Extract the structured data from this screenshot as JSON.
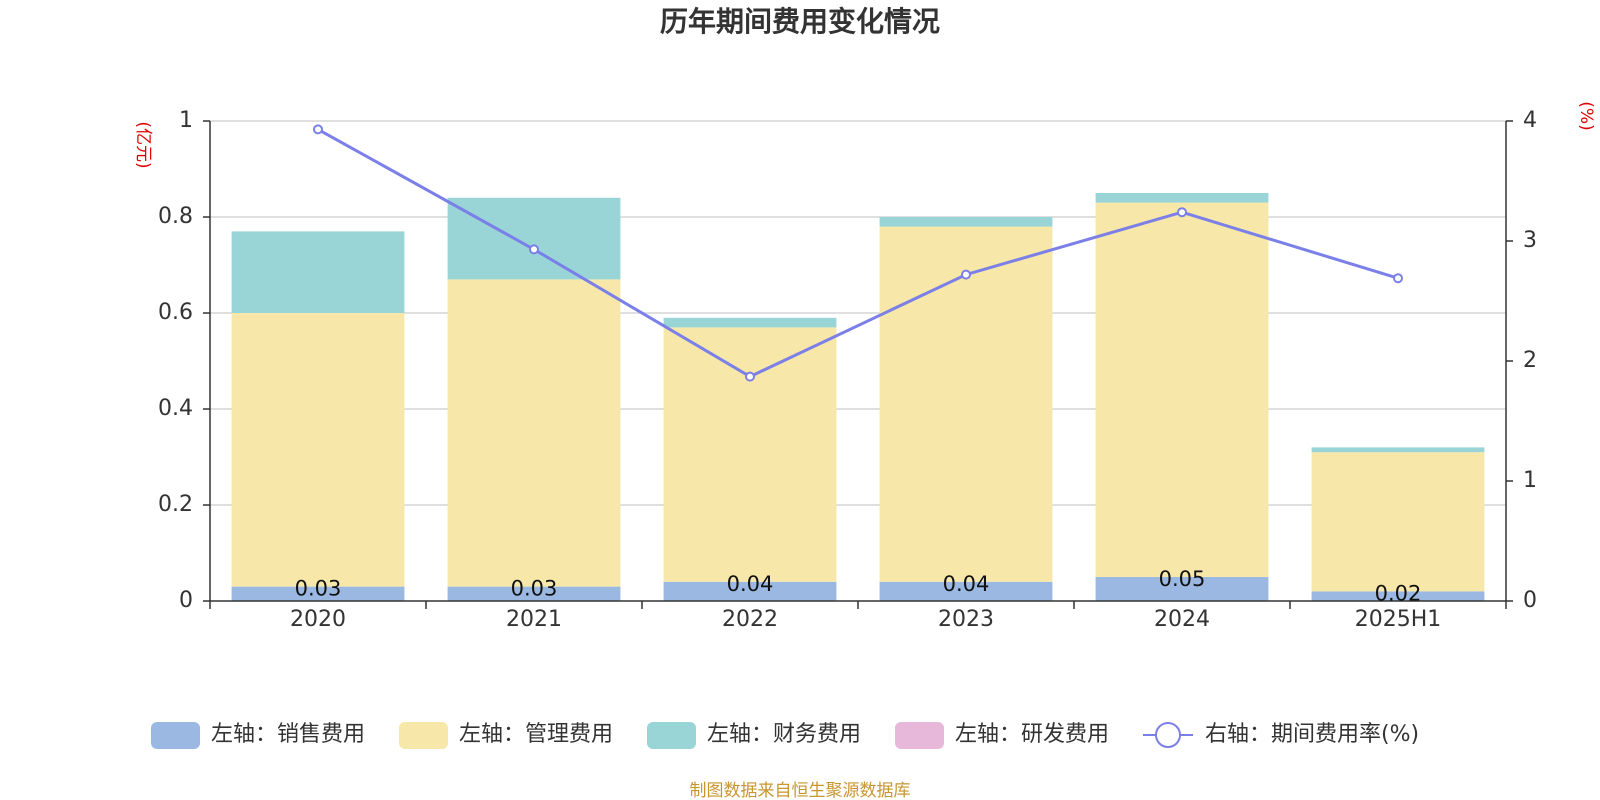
{
  "chart_data": {
    "type": "bar",
    "title": "历年期间费用变化情况",
    "categories": [
      "2020",
      "2021",
      "2022",
      "2023",
      "2024",
      "2025H1"
    ],
    "left_axis": {
      "unit": "(亿元)",
      "ylim": [
        0,
        1
      ],
      "ticks": [
        "0",
        "0.2",
        "0.4",
        "0.6",
        "0.8",
        "1"
      ]
    },
    "right_axis": {
      "unit": "(%)",
      "ylim": [
        0,
        4
      ],
      "ticks": [
        "0",
        "1",
        "2",
        "3",
        "4"
      ]
    },
    "series": [
      {
        "name": "左轴：销售费用",
        "kind": "bar",
        "axis": "left",
        "color": "#9bb8e3",
        "values": [
          0.03,
          0.03,
          0.04,
          0.04,
          0.05,
          0.02
        ],
        "labels": [
          "0.03",
          "0.03",
          "0.04",
          "0.04",
          "0.05",
          "0.02"
        ]
      },
      {
        "name": "左轴：管理费用",
        "kind": "bar",
        "axis": "left",
        "color": "#f7e7a8",
        "values": [
          0.57,
          0.64,
          0.53,
          0.74,
          0.78,
          0.29
        ]
      },
      {
        "name": "左轴：财务费用",
        "kind": "bar",
        "axis": "left",
        "color": "#99d5d6",
        "values": [
          0.17,
          0.17,
          0.02,
          0.02,
          0.02,
          0.01
        ]
      },
      {
        "name": "左轴：研发费用",
        "kind": "bar",
        "axis": "left",
        "color": "#e8b8db",
        "values": [
          0,
          0,
          0,
          0,
          0,
          0
        ]
      },
      {
        "name": "右轴：期间费用率(%)",
        "kind": "line",
        "axis": "right",
        "color": "#7b7fe8",
        "values": [
          3.93,
          2.93,
          1.87,
          2.72,
          3.24,
          2.69
        ]
      }
    ],
    "grid": true,
    "legend_position": "bottom"
  },
  "source": "制图数据来自恒生聚源数据库"
}
